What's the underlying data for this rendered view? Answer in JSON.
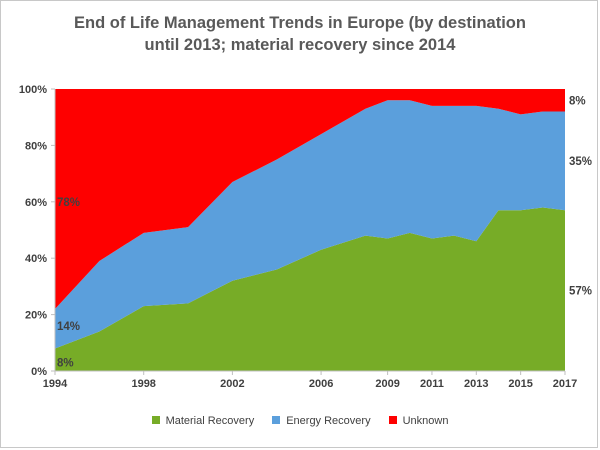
{
  "chart_data": {
    "type": "area",
    "stacked": true,
    "title_line1": "End of Life Management Trends in Europe (by destination",
    "title_line2": "until 2013; material recovery since 2014",
    "x": [
      1994,
      1996,
      1998,
      2000,
      2002,
      2004,
      2006,
      2008,
      2009,
      2010,
      2011,
      2012,
      2013,
      2014,
      2015,
      2016,
      2017
    ],
    "x_ticks": [
      "1994",
      "1998",
      "2002",
      "2006",
      "2009",
      "2011",
      "2013",
      "2015",
      "2017"
    ],
    "y_ticks": [
      "0%",
      "20%",
      "40%",
      "60%",
      "80%",
      "100%"
    ],
    "ylim": [
      0,
      100
    ],
    "grid": false,
    "legend_position": "bottom",
    "series": [
      {
        "name": "Material Recovery",
        "color": "#77ac27",
        "values": [
          8,
          14,
          23,
          24,
          32,
          36,
          43,
          48,
          47,
          49,
          47,
          48,
          46,
          57,
          57,
          58,
          57
        ]
      },
      {
        "name": "Energy Recovery",
        "color": "#5b9fdc",
        "values": [
          14,
          25,
          26,
          27,
          35,
          39,
          41,
          45,
          49,
          47,
          47,
          46,
          48,
          36,
          34,
          34,
          35
        ]
      },
      {
        "name": "Unknown",
        "color": "#fe0000",
        "values": [
          78,
          61,
          51,
          49,
          33,
          25,
          16,
          7,
          4,
          4,
          6,
          6,
          6,
          7,
          9,
          8,
          8
        ]
      }
    ],
    "data_labels": [
      {
        "text": "78%",
        "x": 1994,
        "y": 60,
        "side": "left"
      },
      {
        "text": "14%",
        "x": 1994,
        "y": 16,
        "side": "left"
      },
      {
        "text": "8%",
        "x": 1994,
        "y": 3,
        "side": "left"
      },
      {
        "text": "8%",
        "x": 2017,
        "y": 96,
        "side": "right"
      },
      {
        "text": "35%",
        "x": 2017,
        "y": 74.5,
        "side": "right"
      },
      {
        "text": "57%",
        "x": 2017,
        "y": 28.5,
        "side": "right"
      }
    ]
  }
}
